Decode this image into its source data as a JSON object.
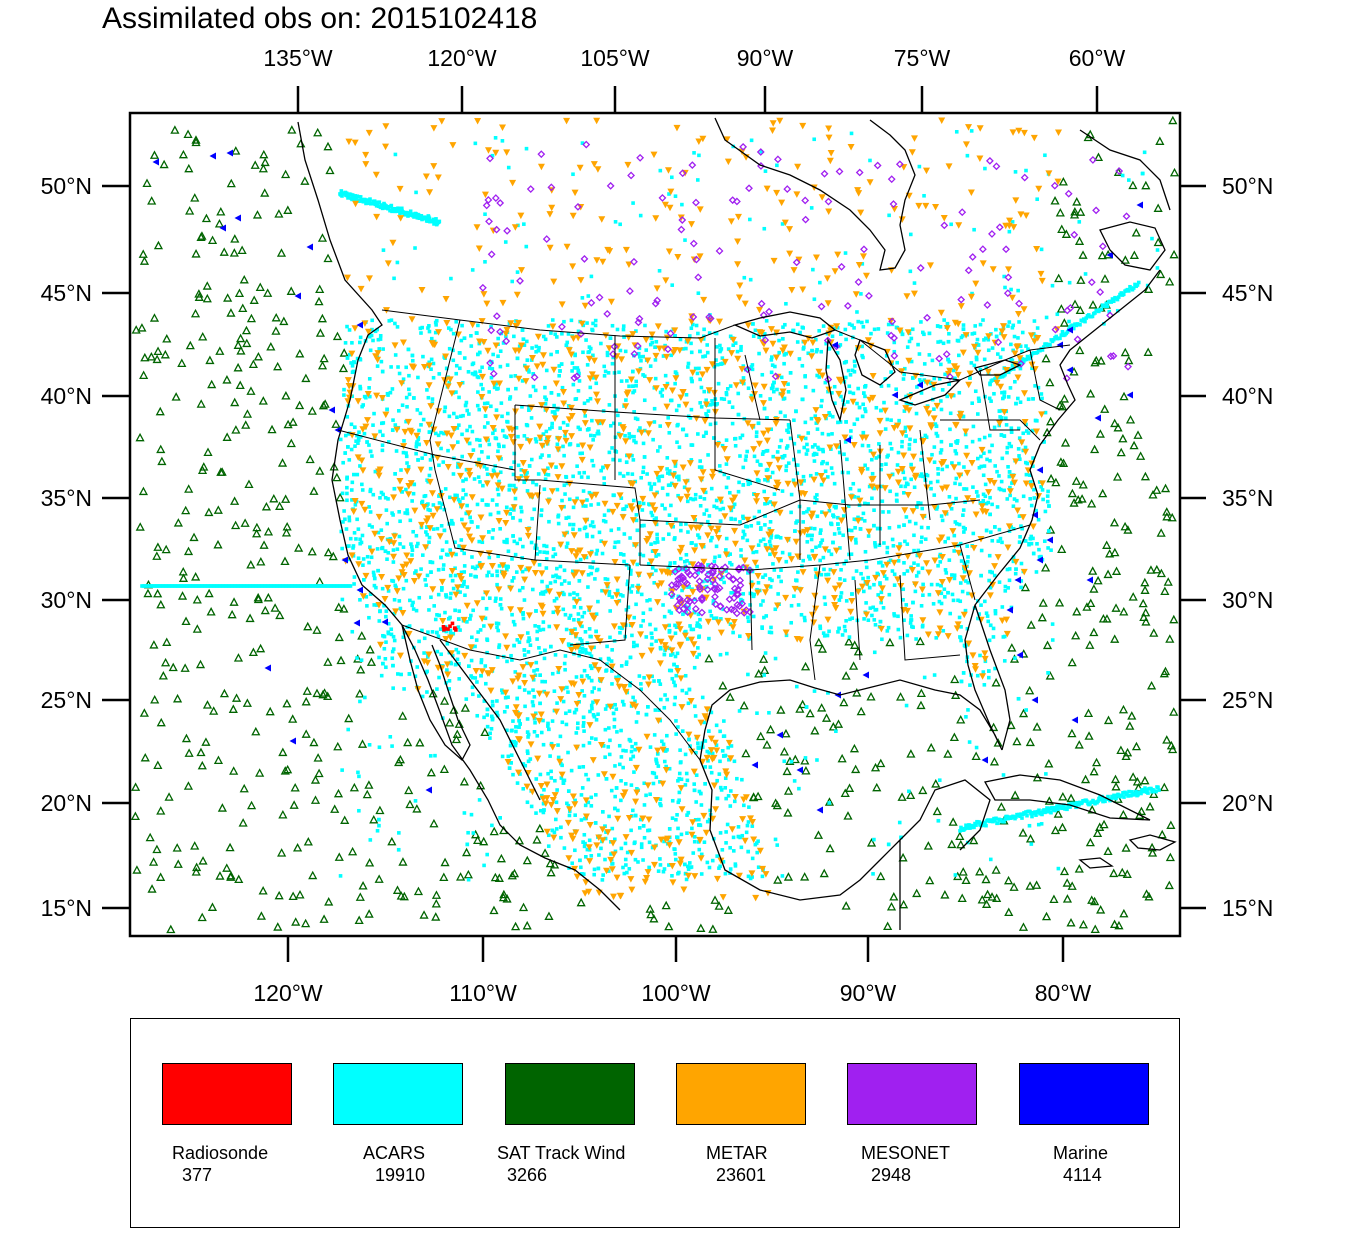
{
  "title": "Assimilated obs on: 2015102418",
  "top_lon_labels": [
    "135°W",
    "120°W",
    "105°W",
    "90°W",
    "75°W",
    "60°W"
  ],
  "bottom_lon_labels": [
    "120°W",
    "110°W",
    "100°W",
    "90°W",
    "80°W"
  ],
  "lat_labels": [
    "50°N",
    "45°N",
    "40°N",
    "35°N",
    "30°N",
    "25°N",
    "20°N",
    "15°N"
  ],
  "legend": [
    {
      "name": "Radiosonde",
      "count": "377",
      "color": "#ff0000"
    },
    {
      "name": "ACARS",
      "count": "19910",
      "color": "#00ffff"
    },
    {
      "name": "SAT Track Wind",
      "count": "3266",
      "color": "#006400"
    },
    {
      "name": "METAR",
      "count": "23601",
      "color": "#ffa500"
    },
    {
      "name": "MESONET",
      "count": "2948",
      "color": "#a020f0"
    },
    {
      "name": "Marine",
      "count": "4114",
      "color": "#0000ff"
    }
  ]
}
